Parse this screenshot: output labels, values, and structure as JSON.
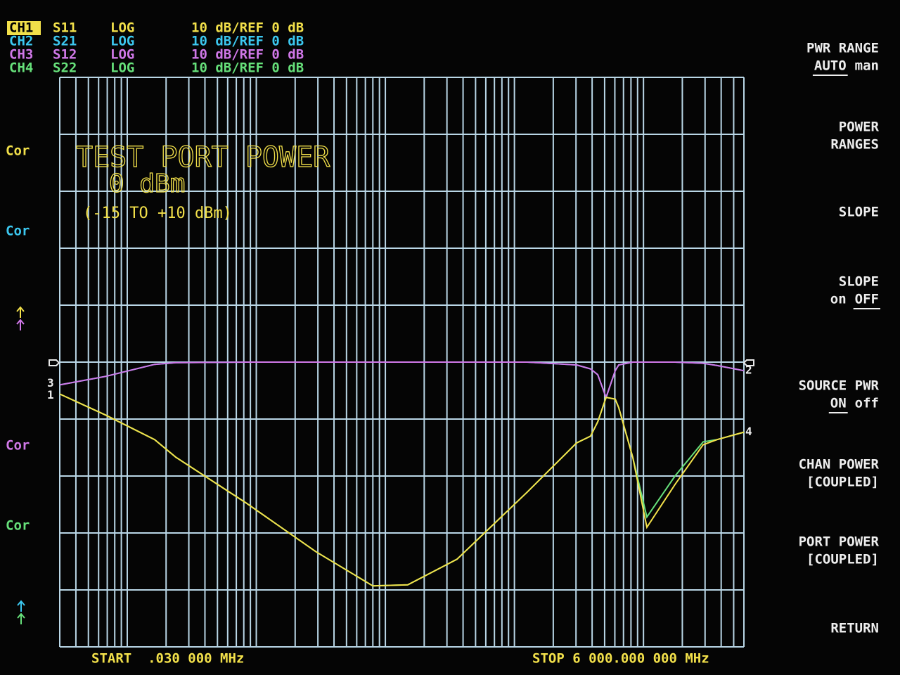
{
  "chart_data": {
    "type": "line",
    "log_x": true,
    "grid": true,
    "xlim": [
      0.03,
      6000
    ],
    "ylim": [
      -50,
      50
    ],
    "xticks": [
      0.03,
      0.04,
      0.05,
      0.06,
      0.07,
      0.08,
      0.09,
      0.1,
      0.2,
      0.3,
      0.4,
      0.5,
      0.6,
      0.7,
      0.8,
      0.9,
      1,
      2,
      3,
      4,
      5,
      6,
      7,
      8,
      9,
      10,
      20,
      30,
      40,
      50,
      60,
      70,
      80,
      90,
      100,
      200,
      300,
      400,
      500,
      600,
      700,
      800,
      900,
      1000,
      2000,
      3000,
      4000,
      5000,
      6000
    ],
    "yticks": [
      -50,
      -40,
      -30,
      -20,
      -10,
      0,
      10,
      20,
      30,
      40,
      50
    ],
    "x": [
      0.03,
      0.068,
      0.163,
      0.238,
      0.83,
      2.9,
      8.0,
      14.9,
      35.9,
      126,
      303,
      389,
      442,
      513,
      604,
      643,
      826,
      1062,
      1754,
      2898,
      3725,
      6000
    ],
    "series": [
      {
        "name": "CH1",
        "param": "S11",
        "format": "LOG",
        "scale": "10 dB/REF 0 dB",
        "color": "#f2e04a",
        "marker": "1",
        "marker_side": "left",
        "values": [
          -5.6,
          -9.3,
          -13.6,
          -16.7,
          -24.7,
          -33.3,
          -39.3,
          -39.1,
          -34.6,
          -22.8,
          -14.2,
          -13,
          -10.5,
          -6.2,
          -6.5,
          -8,
          -16.7,
          -29.0,
          -21.5,
          -14.5,
          -13.6,
          -12.3
        ]
      },
      {
        "name": "CH2",
        "param": "S21",
        "format": "LOG",
        "scale": "10 dB/REF 0 dB",
        "color": "#3cc8f0",
        "marker": "2",
        "marker_side": "right",
        "values": [
          -4.0,
          -2.5,
          -0.4,
          -0.1,
          0,
          0,
          0,
          0,
          0,
          0,
          -0.5,
          -1.2,
          -2.2,
          -6.2,
          -1.5,
          -0.5,
          0,
          0,
          0,
          -0.2,
          -0.6,
          -1.5
        ]
      },
      {
        "name": "CH3",
        "param": "S12",
        "format": "LOG",
        "scale": "10 dB/REF 0 dB",
        "color": "#d078e8",
        "marker": "3",
        "marker_side": "left",
        "values": [
          -4.0,
          -2.5,
          -0.4,
          -0.1,
          0,
          0,
          0,
          0,
          0,
          0,
          -0.5,
          -1.2,
          -2.2,
          -6.2,
          -1.5,
          -0.5,
          0,
          0,
          0,
          -0.2,
          -0.6,
          -1.5
        ]
      },
      {
        "name": "CH4",
        "param": "S22",
        "format": "LOG",
        "scale": "10 dB/REF 0 dB",
        "color": "#66e07a",
        "marker": "4",
        "marker_side": "right",
        "values": [
          -5.6,
          -9.3,
          -13.6,
          -16.7,
          -24.7,
          -33.3,
          -39.3,
          -39.1,
          -34.6,
          -22.8,
          -14.2,
          -13,
          -10.5,
          -6.2,
          -6.5,
          -8,
          -16.7,
          -27.2,
          -20.0,
          -14.0,
          -13.6,
          -12.3
        ]
      }
    ]
  },
  "cor_labels": [
    "Cor",
    "Cor",
    "Cor",
    "Cor"
  ],
  "power_panel": {
    "title": "TEST PORT POWER",
    "value": "0 dBm",
    "range": "(-15 TO +10 dBm)"
  },
  "start": "START  .030 000 MHz",
  "stop": "STOP 6 000.000 000 MHz",
  "softkeys": [
    {
      "lines": [
        [
          {
            "text": "PWR RANGE"
          }
        ],
        [
          {
            "text": "AUTO",
            "active": true
          },
          {
            "text": "man"
          }
        ]
      ]
    },
    {
      "lines": [
        [
          {
            "text": "POWER"
          }
        ],
        [
          {
            "text": "RANGES"
          }
        ]
      ]
    },
    {
      "lines": [
        [
          {
            "text": "SLOPE"
          }
        ]
      ]
    },
    {
      "lines": [
        [
          {
            "text": "SLOPE"
          }
        ],
        [
          {
            "text": "on"
          },
          {
            "text": "OFF",
            "active": true
          }
        ]
      ]
    },
    {
      "lines": [
        [
          {
            "text": "SOURCE PWR"
          }
        ],
        [
          {
            "text": "ON",
            "active": true
          },
          {
            "text": "off"
          }
        ]
      ]
    },
    {
      "lines": [
        [
          {
            "text": "CHAN POWER"
          }
        ],
        [
          {
            "text": "[COUPLED]"
          }
        ]
      ]
    },
    {
      "lines": [
        [
          {
            "text": "PORT POWER"
          }
        ],
        [
          {
            "text": "[COUPLED]"
          }
        ]
      ]
    },
    {
      "lines": [
        [
          {
            "text": "RETURN"
          }
        ]
      ]
    }
  ]
}
